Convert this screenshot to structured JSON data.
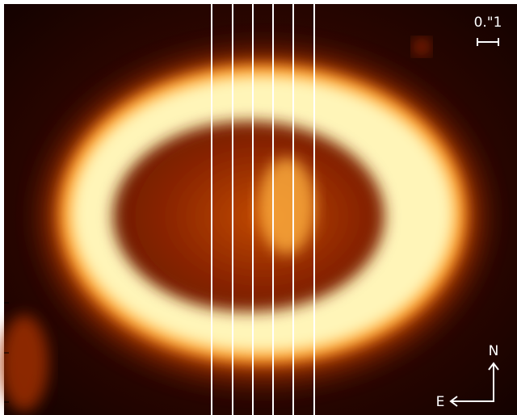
{
  "scale_label": "0.\"1",
  "compass": {
    "north": "N",
    "east": "E"
  }
}
